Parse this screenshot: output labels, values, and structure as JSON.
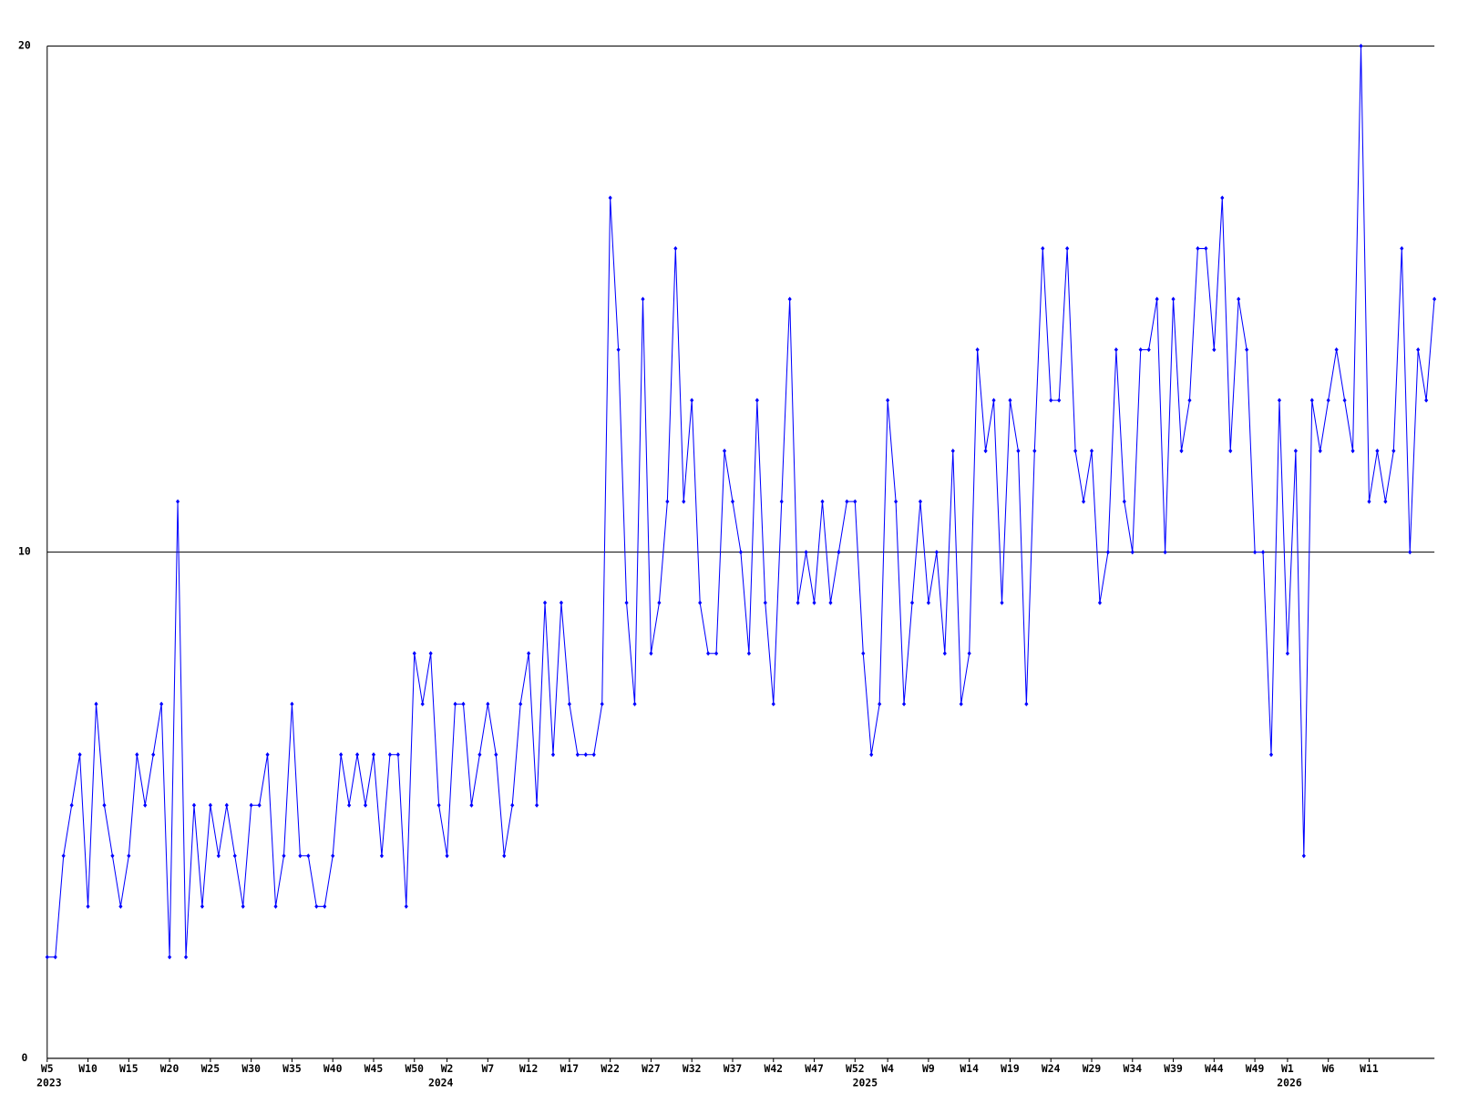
{
  "chart_data": {
    "type": "line",
    "categories": [
      "W5",
      null,
      null,
      null,
      null,
      "W10",
      null,
      null,
      null,
      null,
      "W15",
      null,
      null,
      null,
      null,
      "W20",
      null,
      null,
      null,
      null,
      "W25",
      null,
      null,
      null,
      null,
      "W30",
      null,
      null,
      null,
      null,
      "W35",
      null,
      null,
      null,
      null,
      "W40",
      null,
      null,
      null,
      null,
      "W45",
      null,
      null,
      null,
      null,
      "W50",
      null,
      null,
      null,
      "W2",
      null,
      null,
      null,
      null,
      "W7",
      null,
      null,
      null,
      null,
      "W12",
      null,
      null,
      null,
      null,
      "W17",
      null,
      null,
      null,
      null,
      "W22",
      null,
      null,
      null,
      null,
      "W27",
      null,
      null,
      null,
      null,
      "W32",
      null,
      null,
      null,
      null,
      "W37",
      null,
      null,
      null,
      null,
      "W42",
      null,
      null,
      null,
      null,
      "W47",
      null,
      null,
      null,
      null,
      "W52",
      null,
      null,
      null,
      "W4",
      null,
      null,
      null,
      null,
      "W9",
      null,
      null,
      null,
      null,
      "W14",
      null,
      null,
      null,
      null,
      "W19",
      null,
      null,
      null,
      null,
      "W24",
      null,
      null,
      null,
      null,
      "W29",
      null,
      null,
      null,
      null,
      "W34",
      null,
      null,
      null,
      null,
      "W39",
      null,
      null,
      null,
      null,
      "W44",
      null,
      null,
      null,
      null,
      "W49",
      null,
      null,
      null,
      "W1",
      null,
      null,
      null,
      null,
      "W6",
      null,
      null,
      null,
      null,
      "W11",
      null,
      null,
      null,
      null,
      null,
      null,
      null,
      null
    ],
    "x_group_labels": [
      "2023",
      null,
      null,
      null,
      null,
      null,
      null,
      null,
      null,
      null,
      null,
      null,
      null,
      null,
      null,
      null,
      null,
      null,
      null,
      null,
      null,
      null,
      null,
      null,
      null,
      null,
      null,
      null,
      null,
      null,
      null,
      null,
      null,
      null,
      null,
      null,
      null,
      null,
      null,
      null,
      null,
      null,
      null,
      null,
      null,
      null,
      null,
      null,
      "2024",
      null,
      null,
      null,
      null,
      null,
      null,
      null,
      null,
      null,
      null,
      null,
      null,
      null,
      null,
      null,
      null,
      null,
      null,
      null,
      null,
      null,
      null,
      null,
      null,
      null,
      null,
      null,
      null,
      null,
      null,
      null,
      null,
      null,
      null,
      null,
      null,
      null,
      null,
      null,
      null,
      null,
      null,
      null,
      null,
      null,
      null,
      null,
      null,
      null,
      null,
      null,
      "2025",
      null,
      null,
      null,
      null,
      null,
      null,
      null,
      null,
      null,
      null,
      null,
      null,
      null,
      null,
      null,
      null,
      null,
      null,
      null,
      null,
      null,
      null,
      null,
      null,
      null,
      null,
      null,
      null,
      null,
      null,
      null,
      null,
      null,
      null,
      null,
      null,
      null,
      null,
      null,
      null,
      null,
      null,
      null,
      null,
      null,
      null,
      null,
      null,
      null,
      null,
      null,
      "2026",
      null,
      null,
      null,
      null,
      null,
      null,
      null,
      null,
      null,
      null,
      null,
      null,
      null,
      null,
      null,
      null,
      null,
      null
    ],
    "values": [
      2,
      2,
      4,
      5,
      6,
      3,
      7,
      5,
      4,
      3,
      4,
      6,
      5,
      6,
      7,
      2,
      11,
      2,
      5,
      3,
      5,
      4,
      5,
      4,
      3,
      5,
      5,
      6,
      3,
      4,
      7,
      4,
      4,
      3,
      3,
      4,
      6,
      5,
      6,
      5,
      6,
      4,
      6,
      6,
      3,
      8,
      7,
      8,
      5,
      4,
      7,
      7,
      5,
      6,
      7,
      6,
      4,
      5,
      7,
      8,
      5,
      9,
      6,
      9,
      7,
      6,
      6,
      6,
      7,
      17,
      14,
      9,
      7,
      15,
      8,
      9,
      11,
      16,
      11,
      13,
      9,
      8,
      8,
      12,
      11,
      10,
      8,
      13,
      9,
      7,
      11,
      15,
      9,
      10,
      9,
      11,
      9,
      10,
      11,
      11,
      8,
      6,
      7,
      13,
      11,
      7,
      9,
      11,
      9,
      10,
      8,
      12,
      7,
      8,
      14,
      12,
      13,
      9,
      13,
      12,
      7,
      12,
      16,
      13,
      13,
      16,
      12,
      11,
      12,
      9,
      10,
      14,
      11,
      10,
      14,
      14,
      15,
      10,
      15,
      12,
      13,
      16,
      16,
      14,
      17,
      12,
      15,
      14,
      10,
      10,
      6,
      13,
      8,
      12,
      4,
      13,
      12,
      13,
      14,
      13,
      12,
      20,
      11,
      12,
      11,
      12,
      16,
      10,
      14,
      13,
      15
    ],
    "color": "#0000ff",
    "ylim": [
      0,
      20
    ],
    "yticks": [
      0,
      10,
      20
    ],
    "grid": true
  }
}
